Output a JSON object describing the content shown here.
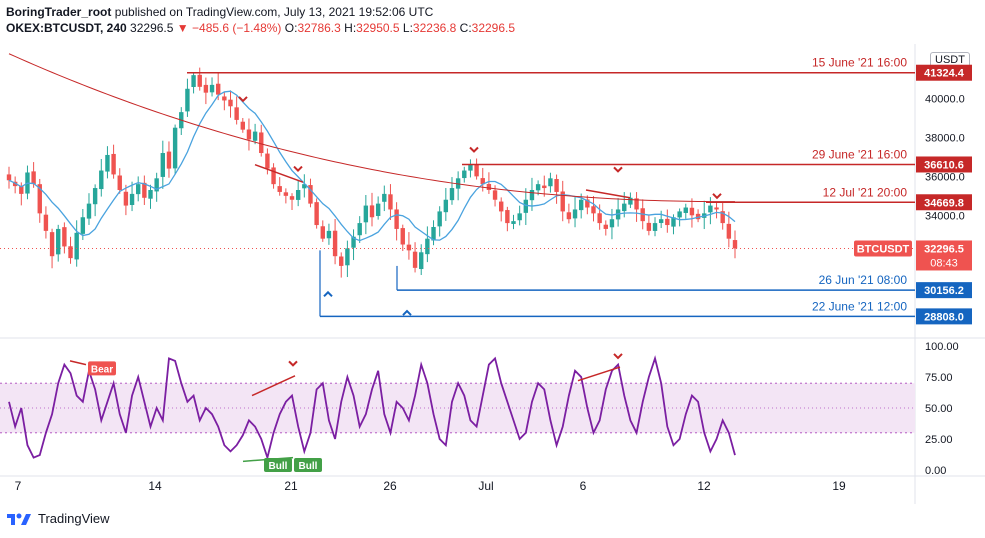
{
  "header": {
    "author": "BoringTrader_root",
    "published": "published on TradingView.com, July 13, 2021 19:52:06 UTC",
    "symbol": "OKEX:BTCUSDT, 240",
    "last": "32296.5",
    "change": "−485.6 (−1.48%)",
    "o_label": "O:",
    "o": "32786.3",
    "h_label": "H:",
    "h": "32950.5",
    "l_label": "L:",
    "l": "32236.8",
    "c_label": "C:",
    "c": "32296.5"
  },
  "currency_button": "USDT",
  "footer": {
    "brand": "TradingView"
  },
  "colors": {
    "red": "#c62828",
    "blue": "#1565c0",
    "up": "#26a69a",
    "down": "#ef5350",
    "ma": "#4aa3df",
    "ma_slow": "#c62828",
    "osc": "#7b1fa2"
  },
  "chart_data": [
    {
      "type": "candlestick",
      "x_ticks": [
        "7",
        "14",
        "21",
        "26",
        "Jul",
        "6",
        "12",
        "19"
      ],
      "y_ticks": [
        "40000.0",
        "38000.0",
        "36000.0",
        "34000.0",
        "30000.0"
      ],
      "ylim": [
        27800,
        42800
      ],
      "close_series": [
        35800,
        35500,
        35100,
        36200,
        35600,
        34100,
        33200,
        31900,
        33300,
        32400,
        31800,
        33100,
        33900,
        34600,
        35400,
        36300,
        37100,
        36100,
        35300,
        34500,
        35100,
        35600,
        34900,
        35300,
        35900,
        37200,
        36400,
        38500,
        39300,
        40500,
        41200,
        40600,
        40300,
        40700,
        40200,
        39900,
        39600,
        38900,
        38400,
        37900,
        38300,
        37200,
        36400,
        35600,
        35200,
        35000,
        34800,
        35300,
        35600,
        34600,
        33500,
        32800,
        33200,
        31900,
        31400,
        32300,
        32900,
        33600,
        34500,
        33900,
        34600,
        35100,
        34300,
        33300,
        32500,
        32200,
        31300,
        32100,
        32800,
        33400,
        34200,
        34800,
        35400,
        35900,
        36300,
        36600,
        36000,
        35600,
        35300,
        34800,
        34200,
        33600,
        33700,
        34100,
        34800,
        35300,
        35600,
        35400,
        35900,
        35200,
        34200,
        33800,
        34300,
        34800,
        34400,
        34100,
        33600,
        33300,
        33800,
        34300,
        34600,
        34900,
        34300,
        33700,
        33200,
        33600,
        33800,
        33500,
        33900,
        34200,
        34400,
        34000,
        33800,
        34100,
        34500,
        34300,
        33600,
        32800,
        32300
      ],
      "annotations": [
        {
          "label": "15 June '21 16:00",
          "value": 41324.4,
          "value_text": "41324.4",
          "color": "red"
        },
        {
          "label": "29 June '21 16:00",
          "value": 36610.6,
          "value_text": "36610.6",
          "color": "red"
        },
        {
          "label": "12 Jul '21 20:00",
          "value": 34669.8,
          "value_text": "34669.8",
          "color": "red"
        },
        {
          "label": "26 Jun '21 08:00",
          "value": 30156.2,
          "value_text": "30156.2",
          "color": "blue"
        },
        {
          "label": "22 June '21 12:00",
          "value": 28808.0,
          "value_text": "28808.0",
          "color": "blue"
        }
      ],
      "last_price": {
        "symbol": "BTCUSDT",
        "price": "32296.5",
        "countdown": "08:43",
        "value": 32296.5
      }
    },
    {
      "type": "line",
      "y_ticks": [
        "100.00",
        "75.00",
        "50.00",
        "25.00",
        "0.00"
      ],
      "ylim": [
        0,
        100
      ],
      "band": [
        30,
        70
      ],
      "signals": [
        {
          "label": "Bear",
          "color": "red"
        },
        {
          "label": "Bull",
          "color": "green"
        },
        {
          "label": "Bull",
          "color": "green"
        }
      ],
      "values": [
        55,
        35,
        50,
        20,
        10,
        12,
        30,
        45,
        70,
        85,
        78,
        60,
        55,
        80,
        65,
        40,
        55,
        70,
        45,
        30,
        60,
        75,
        55,
        35,
        50,
        40,
        90,
        88,
        70,
        55,
        60,
        40,
        50,
        45,
        35,
        20,
        15,
        20,
        28,
        40,
        35,
        25,
        10,
        30,
        45,
        55,
        60,
        35,
        15,
        30,
        65,
        70,
        40,
        25,
        55,
        75,
        60,
        35,
        45,
        65,
        80,
        45,
        30,
        55,
        50,
        40,
        60,
        85,
        70,
        45,
        25,
        20,
        55,
        70,
        60,
        40,
        35,
        60,
        85,
        90,
        70,
        55,
        40,
        25,
        30,
        55,
        70,
        65,
        40,
        20,
        35,
        60,
        80,
        75,
        50,
        30,
        40,
        65,
        80,
        85,
        60,
        40,
        30,
        55,
        75,
        90,
        70,
        35,
        20,
        25,
        45,
        60,
        55,
        30,
        15,
        25,
        40,
        30,
        12
      ]
    }
  ]
}
